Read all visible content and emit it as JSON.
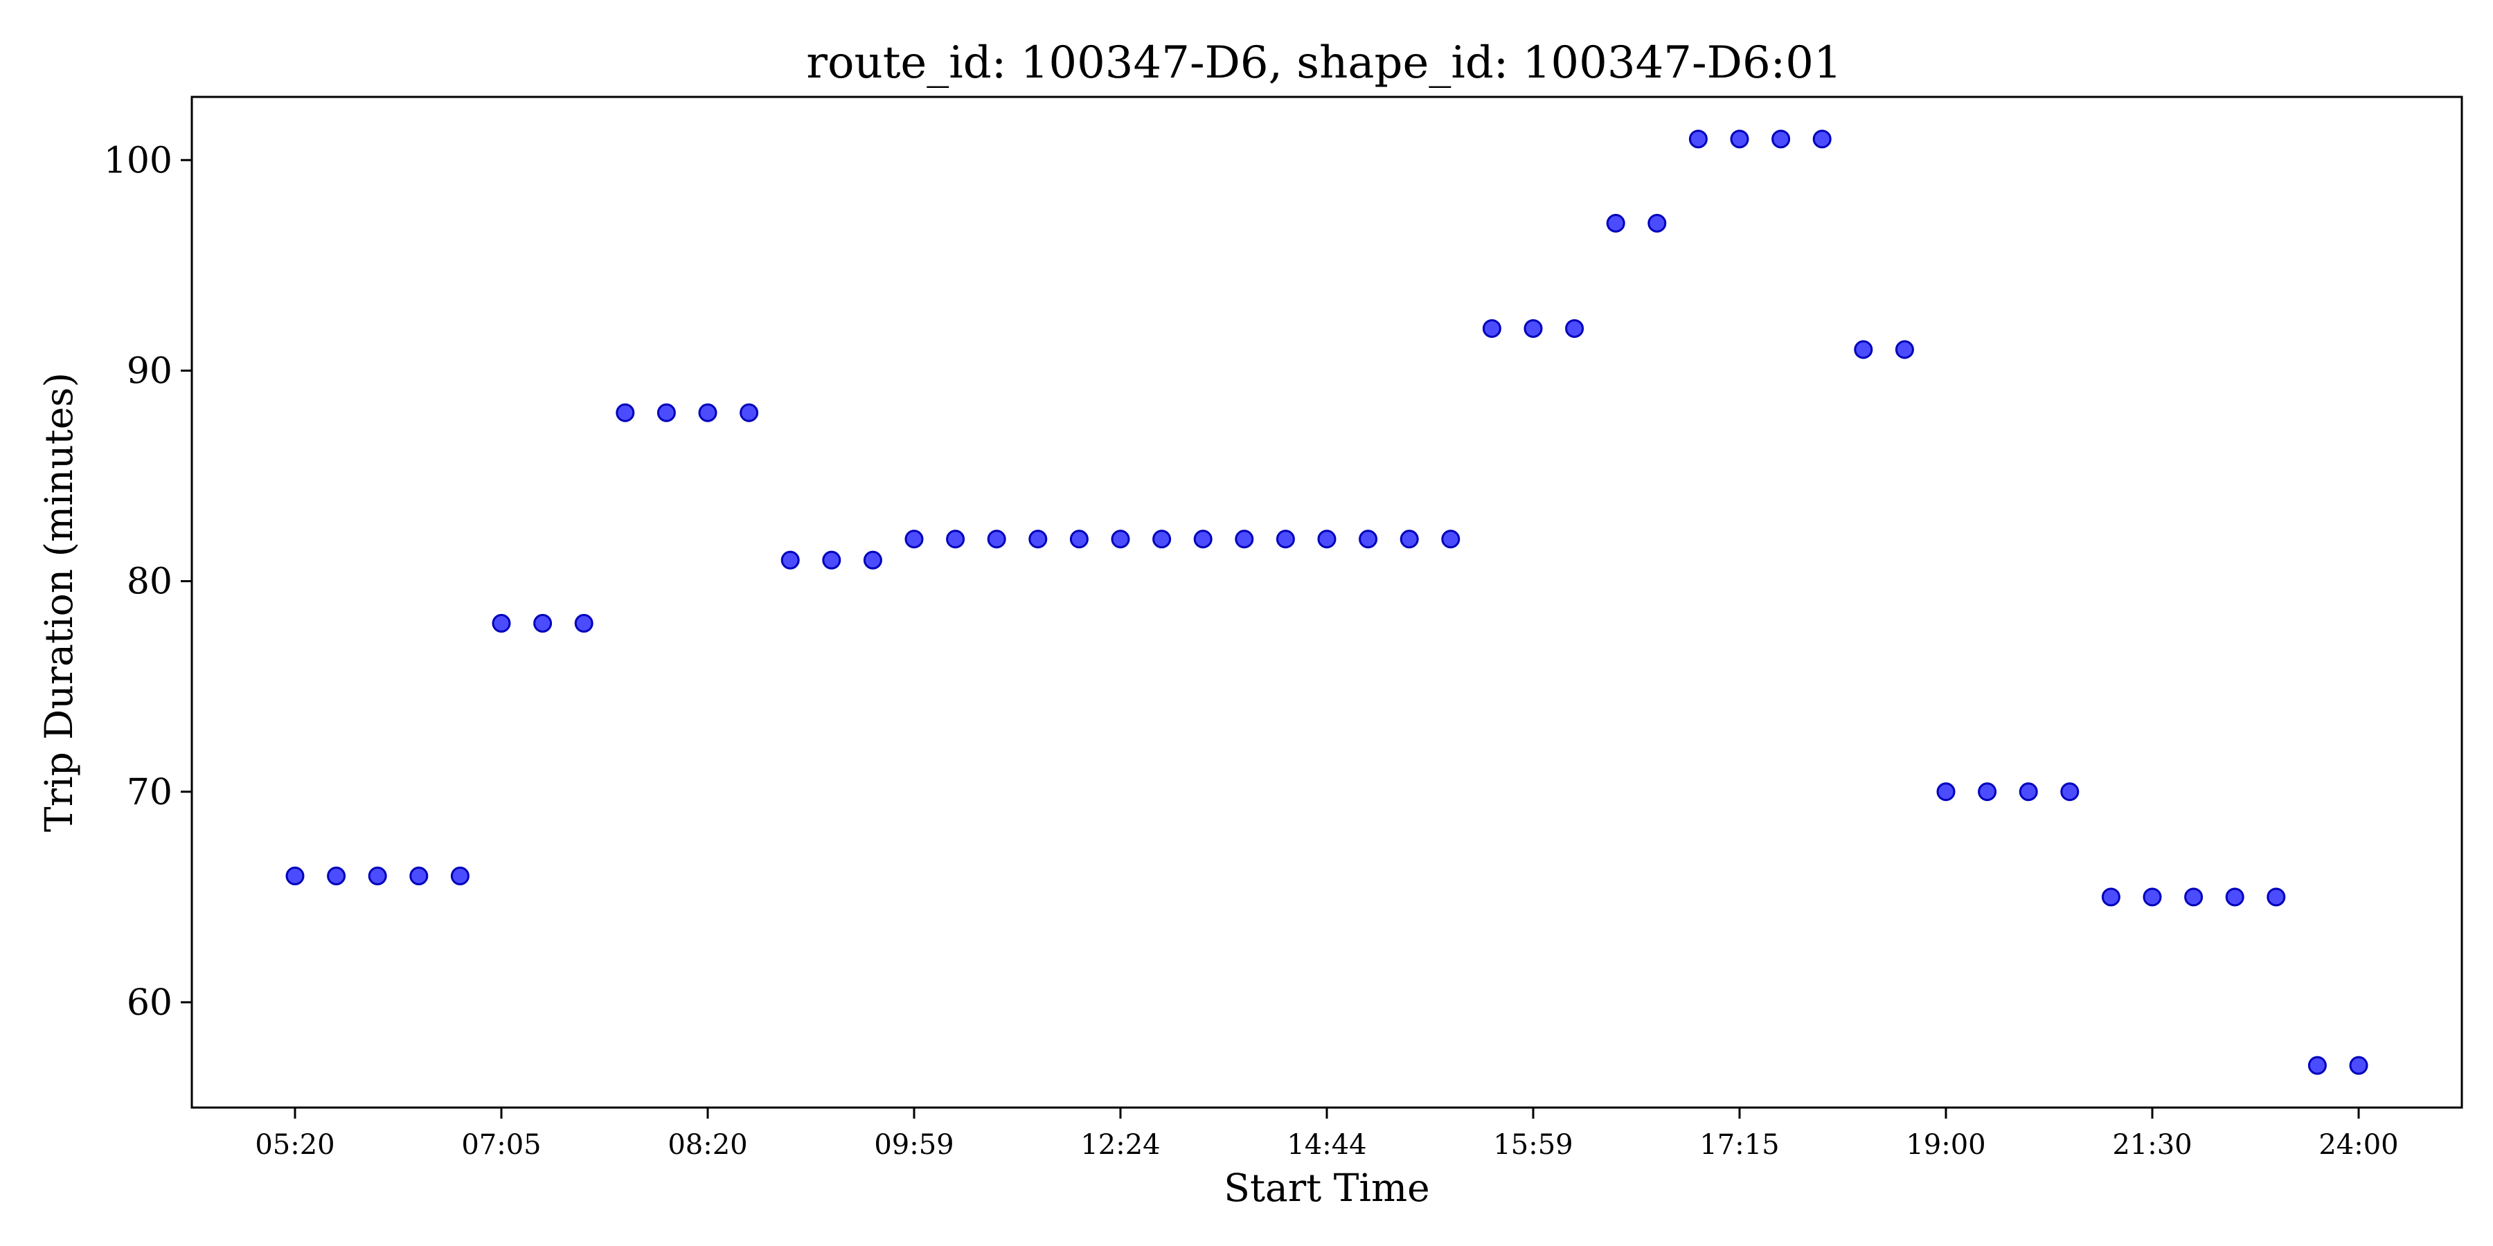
{
  "chart_data": {
    "type": "scatter",
    "title": "route_id: 100347-D6, shape_id: 100347-D6:01",
    "xlabel": "Start Time",
    "ylabel": "Trip Duration (minutes)",
    "ylim": [
      55,
      103
    ],
    "yticks": [
      60,
      70,
      80,
      90,
      100
    ],
    "grid": false,
    "color": "#0000ff",
    "xtick_labels": [
      "05:20",
      "07:05",
      "08:20",
      "09:59",
      "12:24",
      "14:44",
      "15:59",
      "17:15",
      "19:00",
      "21:30",
      "24:00"
    ],
    "xtick_positions": [
      0,
      5,
      10,
      15,
      20,
      25,
      30,
      35,
      40,
      45,
      50
    ],
    "x_range": [
      -2.5,
      52.5
    ],
    "points": [
      {
        "x": 0,
        "y": 66
      },
      {
        "x": 1,
        "y": 66
      },
      {
        "x": 2,
        "y": 66
      },
      {
        "x": 3,
        "y": 66
      },
      {
        "x": 4,
        "y": 66
      },
      {
        "x": 5,
        "y": 78
      },
      {
        "x": 6,
        "y": 78
      },
      {
        "x": 7,
        "y": 78
      },
      {
        "x": 8,
        "y": 88
      },
      {
        "x": 9,
        "y": 88
      },
      {
        "x": 10,
        "y": 88
      },
      {
        "x": 11,
        "y": 88
      },
      {
        "x": 12,
        "y": 81
      },
      {
        "x": 13,
        "y": 81
      },
      {
        "x": 14,
        "y": 81
      },
      {
        "x": 15,
        "y": 82
      },
      {
        "x": 16,
        "y": 82
      },
      {
        "x": 17,
        "y": 82
      },
      {
        "x": 18,
        "y": 82
      },
      {
        "x": 19,
        "y": 82
      },
      {
        "x": 20,
        "y": 82
      },
      {
        "x": 21,
        "y": 82
      },
      {
        "x": 22,
        "y": 82
      },
      {
        "x": 23,
        "y": 82
      },
      {
        "x": 24,
        "y": 82
      },
      {
        "x": 25,
        "y": 82
      },
      {
        "x": 26,
        "y": 82
      },
      {
        "x": 27,
        "y": 82
      },
      {
        "x": 28,
        "y": 82
      },
      {
        "x": 29,
        "y": 92
      },
      {
        "x": 30,
        "y": 92
      },
      {
        "x": 31,
        "y": 92
      },
      {
        "x": 32,
        "y": 97
      },
      {
        "x": 33,
        "y": 97
      },
      {
        "x": 34,
        "y": 101
      },
      {
        "x": 35,
        "y": 101
      },
      {
        "x": 36,
        "y": 101
      },
      {
        "x": 37,
        "y": 101
      },
      {
        "x": 38,
        "y": 91
      },
      {
        "x": 39,
        "y": 91
      },
      {
        "x": 40,
        "y": 70
      },
      {
        "x": 41,
        "y": 70
      },
      {
        "x": 42,
        "y": 70
      },
      {
        "x": 43,
        "y": 70
      },
      {
        "x": 44,
        "y": 65
      },
      {
        "x": 45,
        "y": 65
      },
      {
        "x": 46,
        "y": 65
      },
      {
        "x": 47,
        "y": 65
      },
      {
        "x": 48,
        "y": 65
      },
      {
        "x": 49,
        "y": 57
      },
      {
        "x": 50,
        "y": 57
      }
    ]
  }
}
